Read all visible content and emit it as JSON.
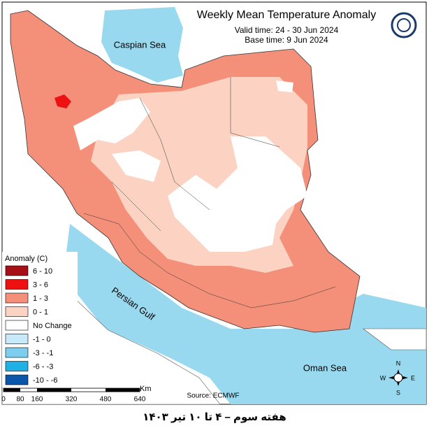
{
  "map": {
    "title": "Weekly Mean Temperature Anomaly",
    "valid_time": "Valid time: 24 - 30 Jun 2024",
    "base_time": "Base time: 9 Jun 2024",
    "labels": {
      "caspian": "Caspian Sea",
      "gulf": "Persian Gulf",
      "oman": "Oman Sea"
    },
    "source": "Source: ECMWF",
    "legend": {
      "title": "Anomaly (C)",
      "items": [
        {
          "label": "6 - 10",
          "color": "#a50f15"
        },
        {
          "label": "3 - 6",
          "color": "#ee1111"
        },
        {
          "label": "1 - 3",
          "color": "#f4907a"
        },
        {
          "label": "0 - 1",
          "color": "#fcd3c3"
        },
        {
          "label": "No Change",
          "color": "#ffffff"
        },
        {
          "label": "-1 - 0",
          "color": "#c8e9f7"
        },
        {
          "label": "-3 - -1",
          "color": "#7dcdee"
        },
        {
          "label": "-6 - -3",
          "color": "#1fb0e6"
        },
        {
          "label": "-10 - -6",
          "color": "#0a56a8"
        }
      ]
    },
    "scale": {
      "unit": "Km",
      "ticks": [
        "0",
        "80",
        "160",
        "320",
        "480",
        "640"
      ]
    },
    "compass": {
      "n": "N",
      "e": "E",
      "s": "S",
      "w": "W"
    },
    "caption": "هفته سوم – ۴ تا ۱۰ تیر ۱۴۰۳"
  }
}
